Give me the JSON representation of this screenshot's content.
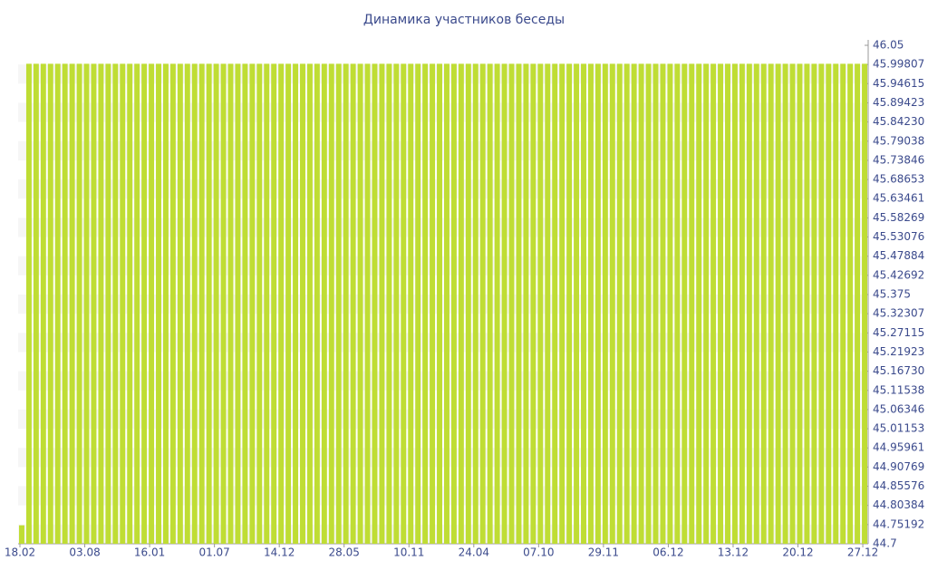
{
  "chart_data": {
    "type": "bar",
    "title": "Динамика участников беседы",
    "categories": [
      "18.02",
      null,
      null,
      null,
      null,
      null,
      null,
      null,
      null,
      "03.08",
      null,
      null,
      null,
      null,
      null,
      null,
      null,
      null,
      "16.01",
      null,
      null,
      null,
      null,
      null,
      null,
      null,
      null,
      "01.07",
      null,
      null,
      null,
      null,
      null,
      null,
      null,
      null,
      "14.12",
      null,
      null,
      null,
      null,
      null,
      null,
      null,
      null,
      "28.05",
      null,
      null,
      null,
      null,
      null,
      null,
      null,
      null,
      "10.11",
      null,
      null,
      null,
      null,
      null,
      null,
      null,
      null,
      "24.04",
      null,
      null,
      null,
      null,
      null,
      null,
      null,
      null,
      "07.10",
      null,
      null,
      null,
      null,
      null,
      null,
      null,
      null,
      "29.11",
      null,
      null,
      null,
      null,
      null,
      null,
      null,
      null,
      "06.12",
      null,
      null,
      null,
      null,
      null,
      null,
      null,
      null,
      "13.12",
      null,
      null,
      null,
      null,
      null,
      null,
      null,
      null,
      "20.12",
      null,
      null,
      null,
      null,
      null,
      null,
      null,
      null,
      "27.12"
    ],
    "values": [
      44.75,
      46,
      46,
      46,
      46,
      46,
      46,
      46,
      46,
      46,
      46,
      46,
      46,
      46,
      46,
      46,
      46,
      46,
      46,
      46,
      46,
      46,
      46,
      46,
      46,
      46,
      46,
      46,
      46,
      46,
      46,
      46,
      46,
      46,
      46,
      46,
      46,
      46,
      46,
      46,
      46,
      46,
      46,
      46,
      46,
      46,
      46,
      46,
      46,
      46,
      46,
      46,
      46,
      46,
      46,
      46,
      46,
      46,
      46,
      46,
      46,
      46,
      46,
      46,
      46,
      46,
      46,
      46,
      46,
      46,
      46,
      46,
      46,
      46,
      46,
      46,
      46,
      46,
      46,
      46,
      46,
      46,
      46,
      46,
      46,
      46,
      46,
      46,
      46,
      46,
      46,
      46,
      46,
      46,
      46,
      46,
      46,
      46,
      46,
      46,
      46,
      46,
      46,
      46,
      46,
      46,
      46,
      46,
      46,
      46,
      46,
      46,
      46,
      46,
      46,
      46,
      46,
      46
    ],
    "color": "#bfdd34",
    "ylim": [
      44.7,
      46.05
    ],
    "yticks": [
      44.7,
      44.75192,
      44.80384,
      44.85576,
      44.90769,
      44.95961,
      45.01153,
      45.06346,
      45.11538,
      {
        "value": 45.1673,
        "label": "45.16730"
      },
      45.21923,
      45.27115,
      45.32307,
      45.375,
      45.42692,
      45.47884,
      45.53076,
      45.58269,
      45.63461,
      45.68653,
      45.73846,
      45.79038,
      {
        "value": 45.8423,
        "label": "45.84230"
      },
      45.89423,
      45.94615,
      45.99807,
      46.05
    ],
    "grid": true
  }
}
